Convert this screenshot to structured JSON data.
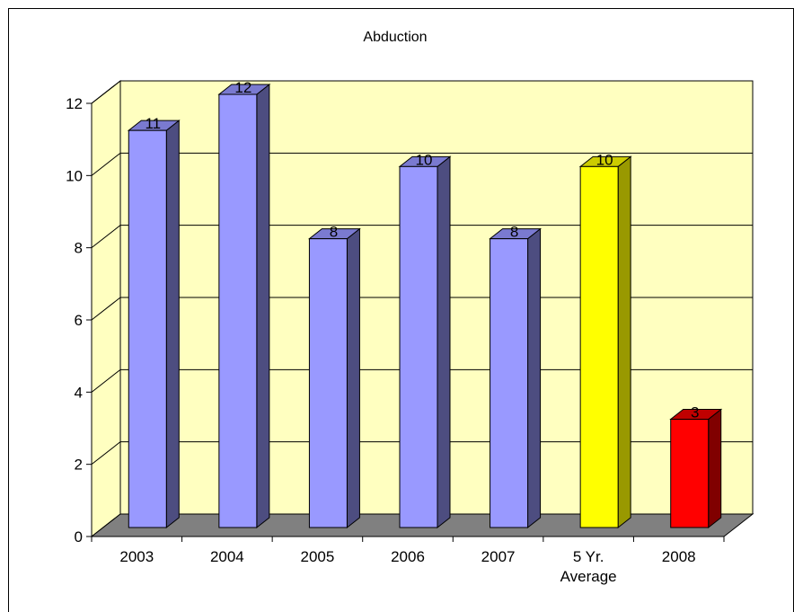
{
  "chart_data": {
    "type": "bar",
    "title": "Abduction",
    "categories": [
      "2003",
      "2004",
      "2005",
      "2006",
      "2007",
      "5 Yr. Average",
      "2008"
    ],
    "category_lines": [
      [
        "2003"
      ],
      [
        "2004"
      ],
      [
        "2005"
      ],
      [
        "2006"
      ],
      [
        "2007"
      ],
      [
        "5 Yr.",
        "Average"
      ],
      [
        "2008"
      ]
    ],
    "values": [
      11,
      12,
      8,
      10,
      8,
      10,
      3
    ],
    "data_labels": [
      "11",
      "12",
      "8",
      "10",
      "8",
      "10",
      "3"
    ],
    "ylim": [
      0,
      12
    ],
    "yticks": [
      0,
      2,
      4,
      6,
      8,
      10,
      12
    ],
    "grid": true,
    "three_d": true,
    "colors": {
      "default_front": "#9999ff",
      "default_side": "#4d4d80",
      "default_top": "#7a7ad0",
      "average_front": "#ffff00",
      "average_side": "#999900",
      "average_top": "#cccc00",
      "current_front": "#ff0000",
      "current_side": "#800000",
      "current_top": "#c00000",
      "wall": "#ffffc0",
      "side_wall": "#ffffc0",
      "floor": "#808080",
      "outline": "#000000"
    },
    "bar_color_roles": [
      "default",
      "default",
      "default",
      "default",
      "default",
      "average",
      "current"
    ]
  }
}
